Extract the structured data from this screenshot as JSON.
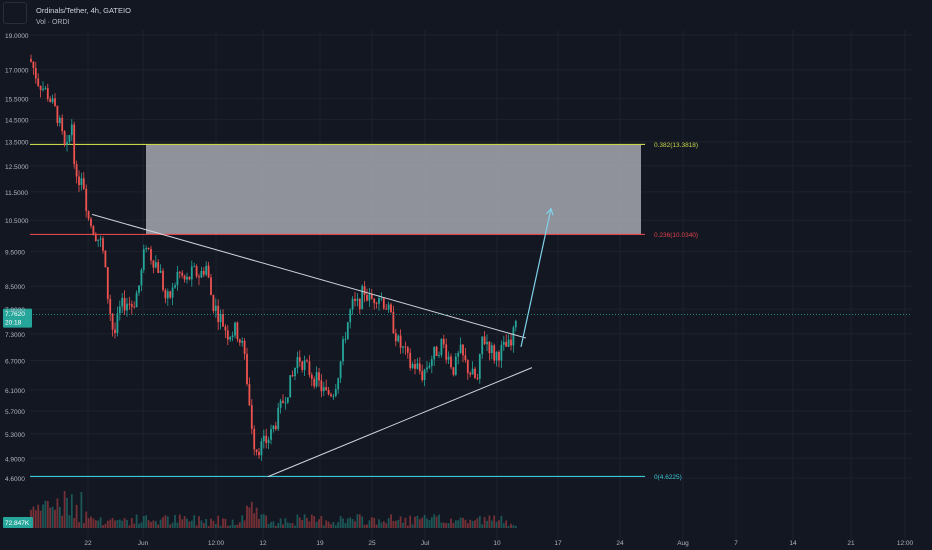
{
  "header": {
    "title": "Ordinals/Tether, 4h, GATEIO",
    "volume_label": "Vol · ORDI",
    "symbol_icon": "symbol-logo-icon"
  },
  "chart_data": {
    "type": "candlestick",
    "price_axis_ticks": [
      19.0,
      17.0,
      15.5,
      14.5,
      13.5,
      12.5,
      11.5,
      10.5,
      9.5,
      8.5,
      7.9,
      7.3,
      6.7,
      6.1,
      5.7,
      5.3,
      4.9,
      4.6
    ],
    "price_axis_labels": [
      "19.0000",
      "17.0000",
      "15.5000",
      "14.5000",
      "13.5000",
      "12.5000",
      "11.5000",
      "10.5000",
      "9.5000",
      "8.5000",
      "7.9000",
      "7.3000",
      "6.7000",
      "6.1000",
      "5.7000",
      "5.3000",
      "4.9000",
      "4.6000"
    ],
    "time_axis_labels": [
      "22",
      "Jun",
      "12:00",
      "12",
      "19",
      "25",
      "Jul",
      "10",
      "17",
      "24",
      "Aug",
      "7",
      "14",
      "21",
      "12:00"
    ],
    "current_price": "7.7620",
    "countdown": "20:18",
    "volume_value": "72.847K",
    "fib_levels": [
      {
        "label": "0.382(13.3818)",
        "price": 13.3818,
        "color": "#c9d64b"
      },
      {
        "label": "0.236(10.0340)",
        "price": 10.034,
        "color": "#e0434a"
      },
      {
        "label": "0(4.6225)",
        "price": 4.6225,
        "color": "#39c6d2"
      }
    ],
    "target_zone": {
      "low": 10.034,
      "high": 13.3818
    },
    "trendlines": [
      {
        "name": "descending-resistance",
        "from_price": 10.7,
        "to_price": 7.2
      },
      {
        "name": "ascending-support",
        "from_price": 4.62,
        "to_price": 6.55
      }
    ],
    "projection_arrow": {
      "from_price": 7.0,
      "to_price": 10.9
    },
    "colors": {
      "up": "#26a69a",
      "down": "#ef5350",
      "background": "#131722",
      "grid": "#1e222d"
    }
  }
}
